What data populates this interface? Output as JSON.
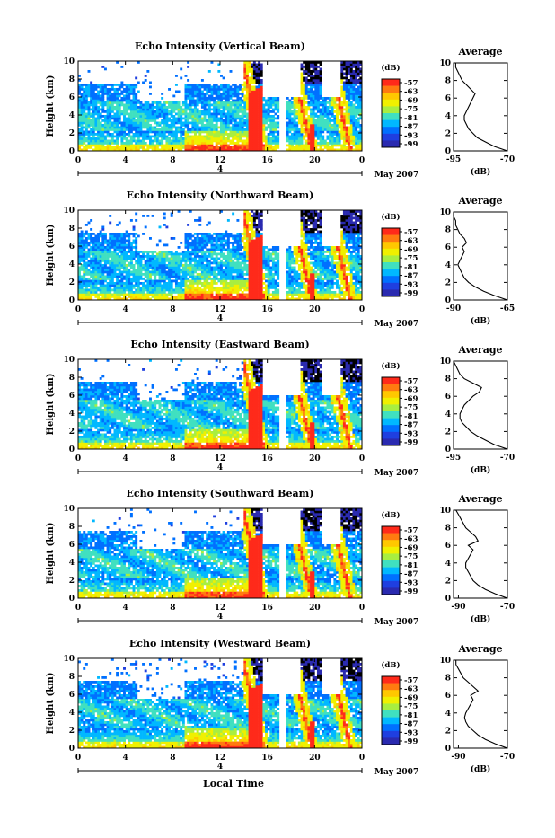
{
  "chart_data": {
    "type": "heatmap",
    "date_label": "May 2007",
    "date_day": "4",
    "xlabel": "Local Time",
    "ylabel": "Height (km)",
    "x_ticks": [
      "0",
      "4",
      "8",
      "12",
      "16",
      "20",
      "0"
    ],
    "xlim": [
      0,
      24
    ],
    "y_ticks": [
      "0",
      "2",
      "4",
      "6",
      "8",
      "10"
    ],
    "ylim": [
      0,
      10
    ],
    "colorbar": {
      "unit": "(dB)",
      "labels": [
        "-57",
        "-63",
        "-69",
        "-75",
        "-81",
        "-87",
        "-93",
        "-99"
      ],
      "colors": [
        "#ff2a1a",
        "#ff7a10",
        "#ffc800",
        "#f0f000",
        "#a8ee40",
        "#40e0c0",
        "#00b8ff",
        "#0070ff",
        "#1f3fe0",
        "#2a2ab0"
      ]
    },
    "panels": [
      {
        "title": "Echo Intensity (Vertical Beam)",
        "avg_title": "Average",
        "avg_xlabel": "(dB)",
        "avg_xticks": [
          "-95",
          "-70"
        ],
        "avg_xlim": [
          -95,
          -70
        ],
        "avg_profile": [
          [
            -70,
            0
          ],
          [
            -76,
            0.5
          ],
          [
            -80,
            1
          ],
          [
            -84,
            1.5
          ],
          [
            -86,
            2
          ],
          [
            -88,
            2.5
          ],
          [
            -89,
            3
          ],
          [
            -90,
            3.5
          ],
          [
            -90,
            4
          ],
          [
            -89,
            4.5
          ],
          [
            -88,
            5
          ],
          [
            -87,
            5.5
          ],
          [
            -86,
            6
          ],
          [
            -85,
            6.5
          ],
          [
            -87,
            7
          ],
          [
            -89,
            7.5
          ],
          [
            -91,
            8
          ],
          [
            -92,
            8.5
          ],
          [
            -93,
            9
          ],
          [
            -94,
            9.5
          ],
          [
            -94,
            10
          ]
        ]
      },
      {
        "title": "Echo Intensity (Northward Beam)",
        "avg_title": "Average",
        "avg_xlabel": "(dB)",
        "avg_xticks": [
          "-90",
          "-65"
        ],
        "avg_xlim": [
          -90,
          -65
        ],
        "avg_profile": [
          [
            -65,
            0
          ],
          [
            -71,
            0.5
          ],
          [
            -76,
            1
          ],
          [
            -80,
            1.5
          ],
          [
            -83,
            2
          ],
          [
            -85,
            2.5
          ],
          [
            -86,
            3
          ],
          [
            -87,
            3.5
          ],
          [
            -88,
            4
          ],
          [
            -87,
            4.5
          ],
          [
            -86,
            5
          ],
          [
            -85,
            5.5
          ],
          [
            -86,
            6
          ],
          [
            -84,
            6.5
          ],
          [
            -85,
            7
          ],
          [
            -87,
            7.5
          ],
          [
            -88,
            8
          ],
          [
            -89,
            8.5
          ],
          [
            -89,
            9
          ],
          [
            -90,
            9.5
          ],
          [
            -90,
            10
          ]
        ]
      },
      {
        "title": "Echo Intensity (Eastward Beam)",
        "avg_title": "Average",
        "avg_xlabel": "(dB)",
        "avg_xticks": [
          "-95",
          "-70"
        ],
        "avg_xlim": [
          -95,
          -70
        ],
        "avg_profile": [
          [
            -70,
            0
          ],
          [
            -76,
            0.5
          ],
          [
            -80,
            1
          ],
          [
            -84,
            1.5
          ],
          [
            -87,
            2
          ],
          [
            -89,
            2.5
          ],
          [
            -91,
            3
          ],
          [
            -92,
            3.5
          ],
          [
            -92,
            4
          ],
          [
            -91,
            4.5
          ],
          [
            -90,
            5
          ],
          [
            -88,
            5.5
          ],
          [
            -86,
            6
          ],
          [
            -83,
            6.5
          ],
          [
            -82,
            7
          ],
          [
            -86,
            7.5
          ],
          [
            -90,
            8
          ],
          [
            -92,
            8.5
          ],
          [
            -93,
            9
          ],
          [
            -94,
            9.5
          ],
          [
            -95,
            10
          ]
        ]
      },
      {
        "title": "Echo Intensity (Southward Beam)",
        "avg_title": "Average",
        "avg_xlabel": "(dB)",
        "avg_xticks": [
          "-90",
          "-70"
        ],
        "avg_xlim": [
          -92,
          -70
        ],
        "avg_profile": [
          [
            -70,
            0
          ],
          [
            -75,
            0.5
          ],
          [
            -79,
            1
          ],
          [
            -82,
            1.5
          ],
          [
            -84,
            2
          ],
          [
            -85,
            2.5
          ],
          [
            -86,
            3
          ],
          [
            -87,
            3.5
          ],
          [
            -87,
            4
          ],
          [
            -86,
            4.5
          ],
          [
            -85,
            5
          ],
          [
            -84,
            5.5
          ],
          [
            -86,
            6
          ],
          [
            -82,
            6.5
          ],
          [
            -83,
            7
          ],
          [
            -85,
            7.5
          ],
          [
            -87,
            8
          ],
          [
            -88,
            8.5
          ],
          [
            -89,
            9
          ],
          [
            -90,
            9.5
          ],
          [
            -91,
            10
          ]
        ]
      },
      {
        "title": "Echo Intensity (Westward Beam)",
        "avg_title": "Average",
        "avg_xlabel": "(dB)",
        "avg_xticks": [
          "-90",
          "-70"
        ],
        "avg_xlim": [
          -92,
          -70
        ],
        "avg_profile": [
          [
            -70,
            0
          ],
          [
            -75,
            0.5
          ],
          [
            -79,
            1
          ],
          [
            -82,
            1.5
          ],
          [
            -84,
            2
          ],
          [
            -86,
            2.5
          ],
          [
            -87,
            3
          ],
          [
            -87.5,
            3.5
          ],
          [
            -87,
            4
          ],
          [
            -86,
            4.5
          ],
          [
            -85,
            5
          ],
          [
            -84,
            5.5
          ],
          [
            -85,
            6
          ],
          [
            -82,
            6.5
          ],
          [
            -84,
            7
          ],
          [
            -86,
            7.5
          ],
          [
            -88,
            8
          ],
          [
            -89,
            8.5
          ],
          [
            -90,
            9
          ],
          [
            -91,
            9.5
          ],
          [
            -91,
            10
          ]
        ]
      }
    ]
  }
}
